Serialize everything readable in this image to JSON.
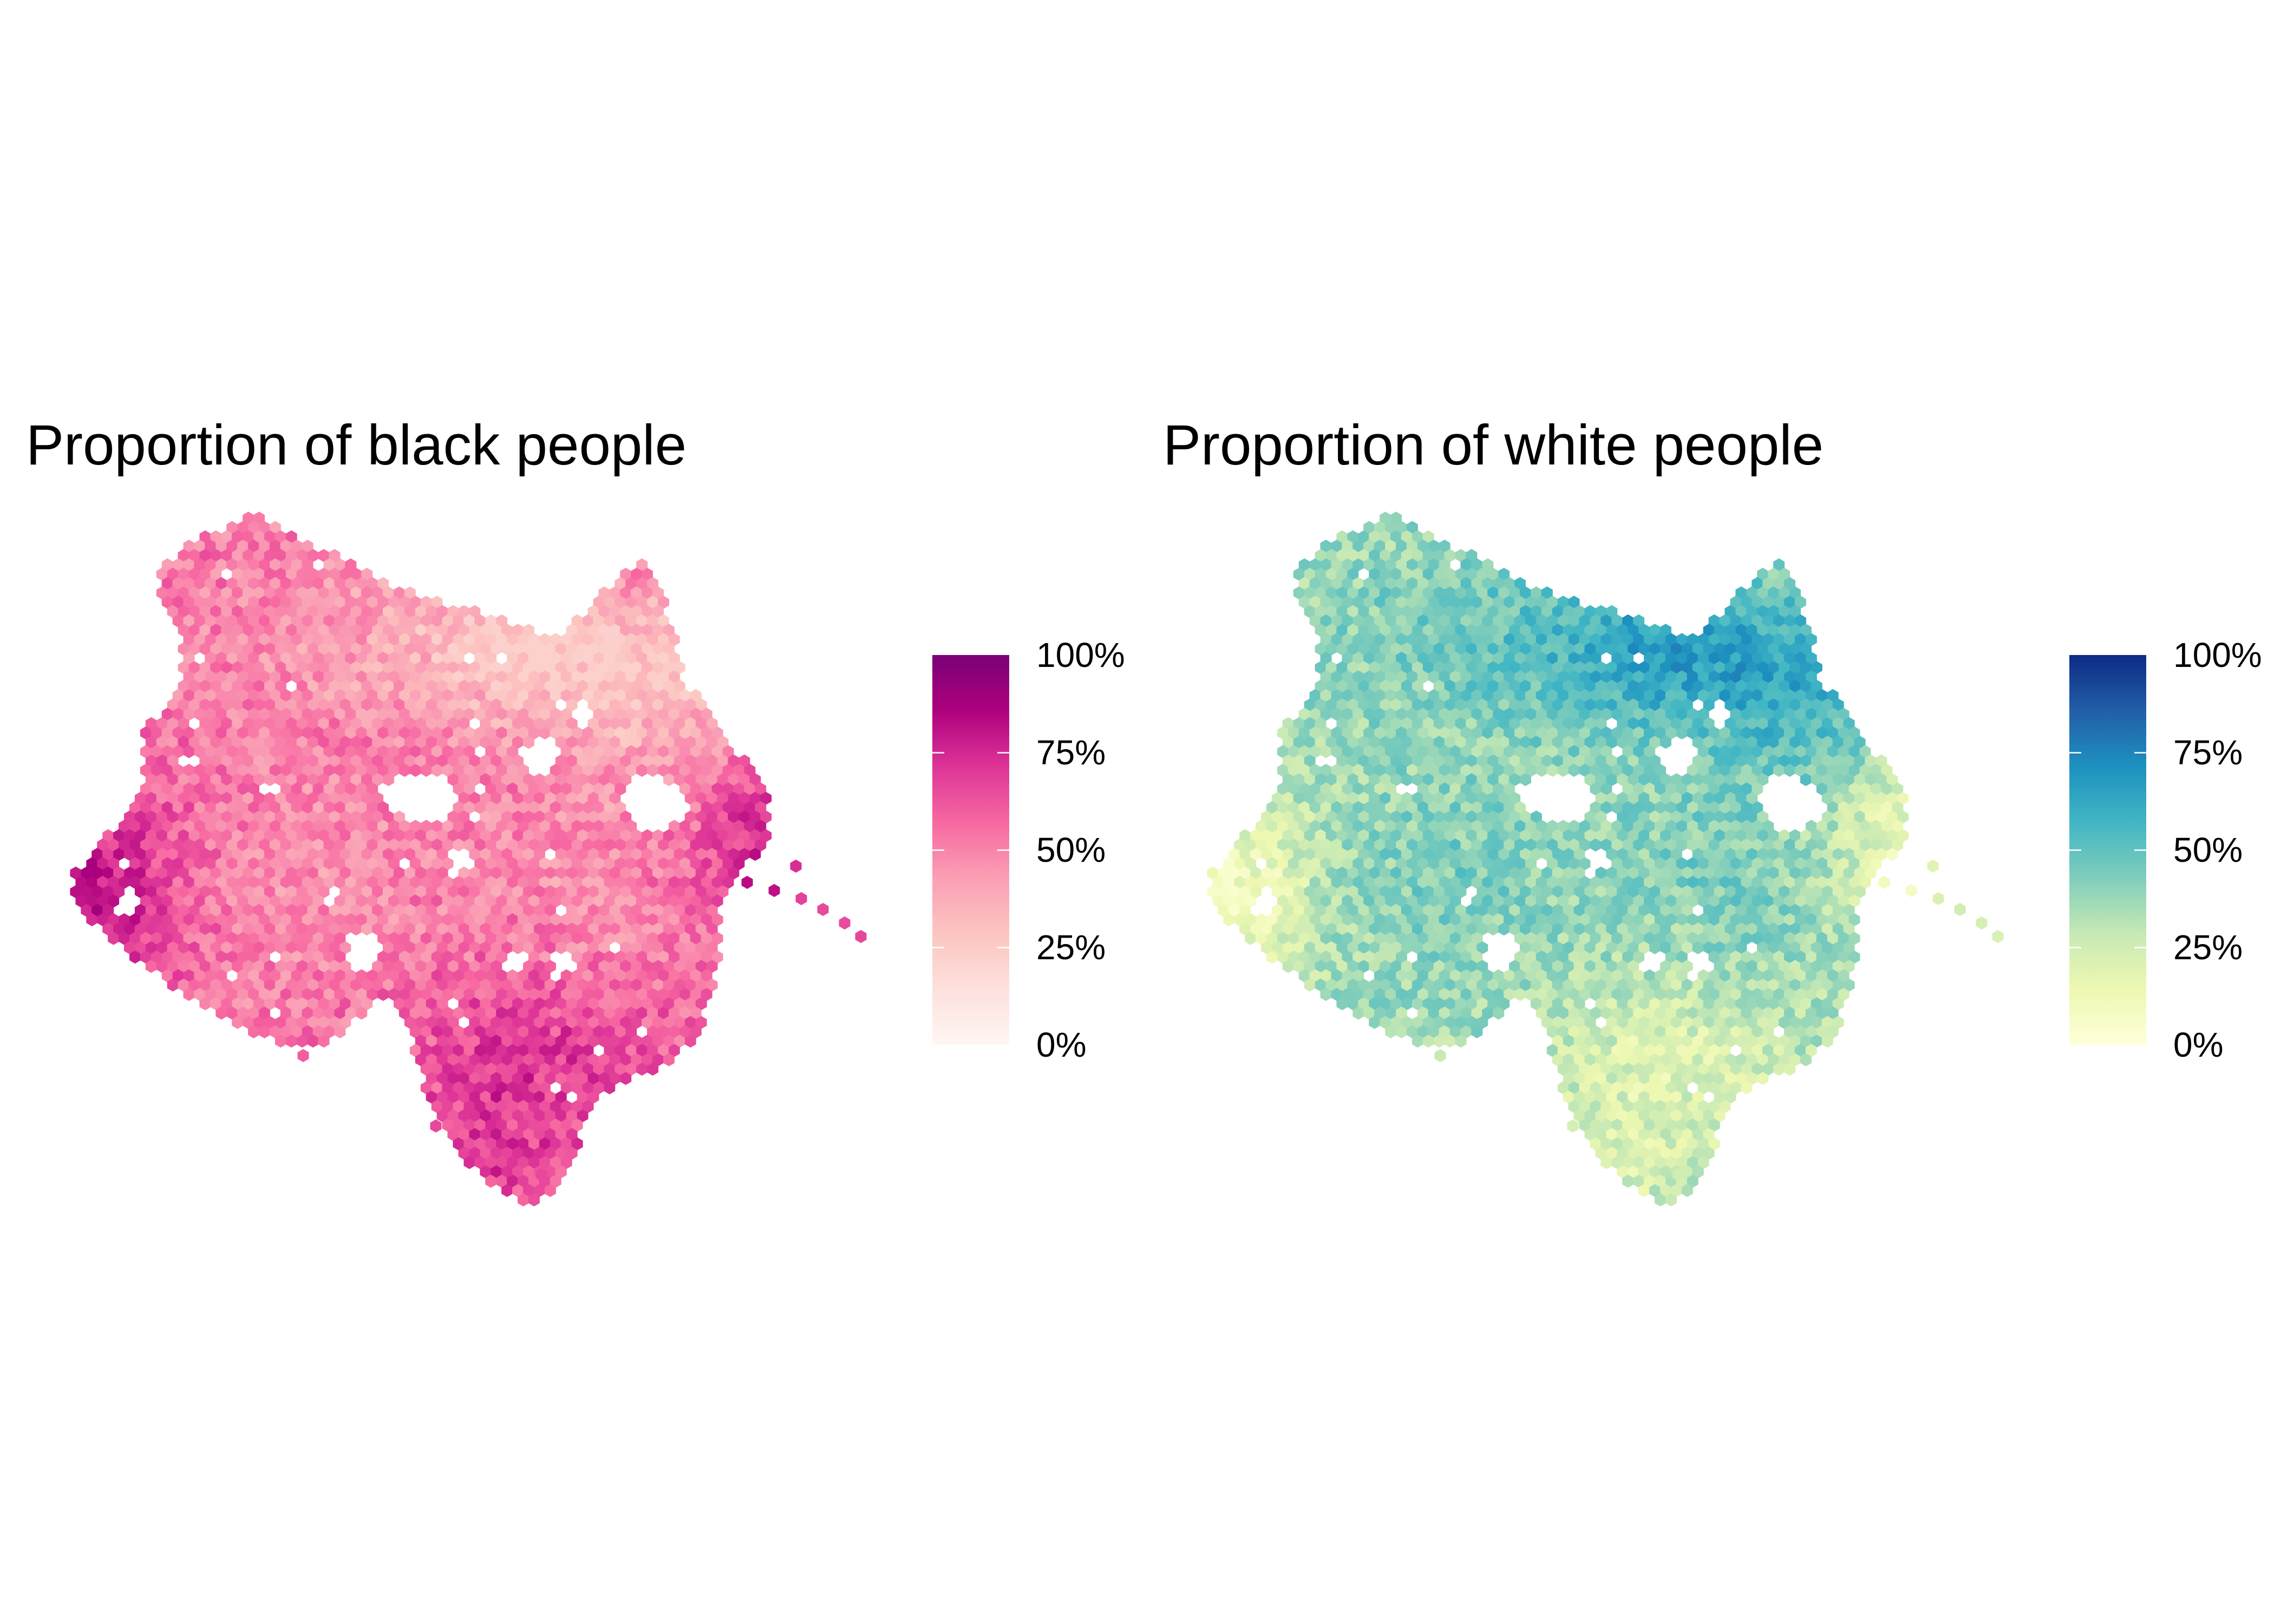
{
  "chart_data": [
    {
      "type": "heatmap",
      "subtype": "hexbin-map",
      "title": "Proportion of black people",
      "xlabel": "",
      "ylabel": "",
      "grid": false,
      "axes_visible": false,
      "legend": {
        "placement": "right",
        "breaks": [
          0,
          0.25,
          0.5,
          0.75,
          1.0
        ],
        "labels": [
          "0%",
          "25%",
          "50%",
          "75%",
          "100%"
        ],
        "range": [
          0,
          1
        ]
      },
      "palette": [
        "#fff7f3",
        "#fde0dd",
        "#fcc5c0",
        "#fa9fb5",
        "#f768a1",
        "#dd3497",
        "#ae017e",
        "#7a0177"
      ],
      "values_summary": {
        "typical_range": [
          0.3,
          0.85
        ],
        "low_region": "north-central (around 0.25–0.35)",
        "high_regions": "west, south-east and eastern fringe (around 0.75–0.85)"
      }
    },
    {
      "type": "heatmap",
      "subtype": "hexbin-map",
      "title": "Proportion of white people",
      "xlabel": "",
      "ylabel": "",
      "grid": false,
      "axes_visible": false,
      "legend": {
        "placement": "right",
        "breaks": [
          0,
          0.25,
          0.5,
          0.75,
          1.0
        ],
        "labels": [
          "0%",
          "25%",
          "50%",
          "75%",
          "100%"
        ],
        "range": [
          0,
          1
        ]
      },
      "palette": [
        "#ffffd9",
        "#edf8b1",
        "#c7e9b4",
        "#7fcdbb",
        "#41b6c4",
        "#1d91c0",
        "#225ea8",
        "#0c2c84"
      ],
      "values_summary": {
        "typical_range": [
          0.05,
          0.7
        ],
        "high_region": "north-central and north-east (around 0.6–0.7)",
        "low_regions": "west, south-east and eastern fringe (around 0.05–0.15)"
      }
    }
  ]
}
